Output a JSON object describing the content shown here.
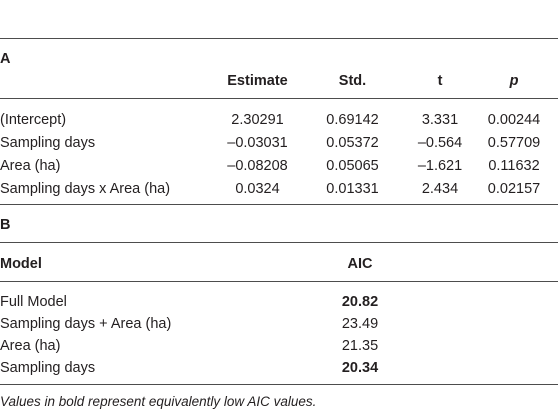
{
  "section_a": {
    "label": "A",
    "headers": {
      "estimate": "Estimate",
      "std": "Std.",
      "t": "t",
      "p": "p"
    },
    "rows": [
      {
        "term": "(Intercept)",
        "estimate": "2.30291",
        "std": "0.69142",
        "t": "3.331",
        "p": "0.00244"
      },
      {
        "term": "Sampling days",
        "estimate": "–0.03031",
        "std": "0.05372",
        "t": "–0.564",
        "p": "0.57709"
      },
      {
        "term": "Area (ha)",
        "estimate": "–0.08208",
        "std": "0.05065",
        "t": "–1.621",
        "p": "0.11632"
      },
      {
        "term": "Sampling days x Area (ha)",
        "estimate": "0.0324",
        "std": "0.01331",
        "t": "2.434",
        "p": "0.02157"
      }
    ]
  },
  "section_b": {
    "label": "B",
    "headers": {
      "model": "Model",
      "aic": "AIC"
    },
    "rows": [
      {
        "model": "Full Model",
        "aic": "20.82",
        "bold": true
      },
      {
        "model": "Sampling days + Area (ha)",
        "aic": "23.49",
        "bold": false
      },
      {
        "model": "Area (ha)",
        "aic": "21.35",
        "bold": false
      },
      {
        "model": "Sampling days",
        "aic": "20.34",
        "bold": true
      }
    ]
  },
  "footnote": "Values in bold represent equivalently low AIC values."
}
